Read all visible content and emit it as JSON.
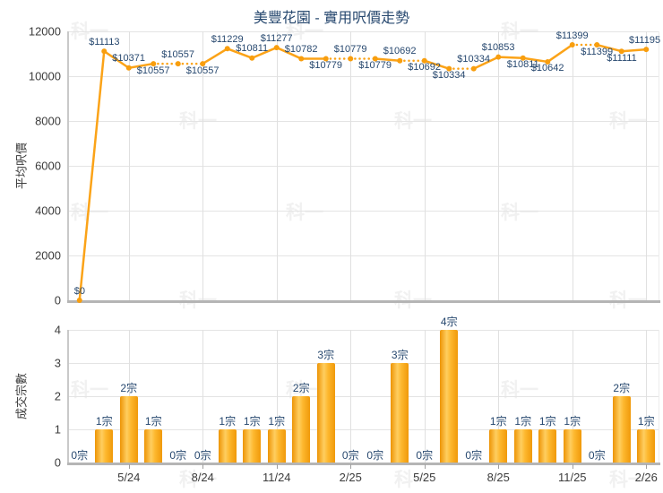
{
  "title": "美豐花園 - 實用呎價走勢",
  "watermark_text": "科一",
  "colors": {
    "line": "#FBA318",
    "marker": "#F89E0E",
    "bar_edge": "#ED9405",
    "bar_highlight": "#FFCE60",
    "label_navy": "#27486F",
    "tick_text": "#3C3C3C",
    "grid": "#E4E4E4",
    "axis": "#B5B5B5",
    "watermark": "#F1F1F1"
  },
  "chart_data": [
    {
      "type": "line",
      "title": "美豐花園 - 實用呎價走勢",
      "ylabel": "平均呎價",
      "xlabel": "",
      "ylim": [
        0,
        12000
      ],
      "yticks": [
        0,
        2000,
        4000,
        6000,
        8000,
        10000,
        12000
      ],
      "grid": true,
      "legend_position": "none",
      "categories": [
        "3/24",
        "4/24",
        "5/24",
        "6/24",
        "7/24",
        "8/24",
        "9/24",
        "10/24",
        "11/24",
        "12/24",
        "1/25",
        "2/25",
        "3/25",
        "4/25",
        "5/25",
        "6/25",
        "7/25",
        "8/25",
        "9/25",
        "10/25",
        "11/25",
        "12/25",
        "1/26",
        "2/26"
      ],
      "x_tick_indices": [
        2,
        5,
        8,
        11,
        14,
        17,
        20,
        23
      ],
      "x_tick_labels": [
        "5/24",
        "8/24",
        "11/24",
        "2/25",
        "5/25",
        "8/25",
        "11/25",
        "2/26"
      ],
      "values": [
        0,
        11113,
        10371,
        10557,
        10557,
        10557,
        11229,
        10811,
        11277,
        10782,
        10779,
        10779,
        10779,
        10692,
        10692,
        10334,
        10334,
        10853,
        10811,
        10642,
        11399,
        11399,
        11111,
        11195
      ],
      "point_labels": [
        "$0",
        "$11113",
        "$10371",
        "$10557",
        "$10557",
        "$10557",
        "$11229",
        "$10811",
        "$11277",
        "$10782",
        "$10779",
        "$10779",
        "$10779",
        "$10692",
        "$10692",
        "$10334",
        "$10334",
        "$10853",
        "$10811",
        "$10642",
        "$11399",
        "$11399",
        "$11111",
        "$11195"
      ],
      "label_side": [
        "above",
        "above",
        "above",
        "below",
        "above",
        "below",
        "above",
        "above",
        "above",
        "above",
        "below",
        "above",
        "below",
        "above",
        "below",
        "below",
        "above",
        "above",
        "below",
        "below",
        "above",
        "below",
        "below",
        "above"
      ],
      "dotted_segment_end_indices": [
        4,
        5,
        11,
        12,
        14,
        16,
        21
      ]
    },
    {
      "type": "bar",
      "ylabel": "成交宗數",
      "xlabel": "",
      "ylim": [
        0,
        4
      ],
      "yticks": [
        0,
        1,
        2,
        3,
        4
      ],
      "grid": true,
      "legend_position": "none",
      "categories": [
        "3/24",
        "4/24",
        "5/24",
        "6/24",
        "7/24",
        "8/24",
        "9/24",
        "10/24",
        "11/24",
        "12/24",
        "1/25",
        "2/25",
        "3/25",
        "4/25",
        "5/25",
        "6/25",
        "7/25",
        "8/25",
        "9/25",
        "10/25",
        "11/25",
        "12/25",
        "1/26",
        "2/26"
      ],
      "x_tick_indices": [
        2,
        5,
        8,
        11,
        14,
        17,
        20,
        23
      ],
      "x_tick_labels": [
        "5/24",
        "8/24",
        "11/24",
        "2/25",
        "5/25",
        "8/25",
        "11/25",
        "2/26"
      ],
      "values": [
        0,
        1,
        2,
        1,
        0,
        0,
        1,
        1,
        1,
        2,
        3,
        0,
        0,
        3,
        0,
        4,
        0,
        1,
        1,
        1,
        1,
        0,
        2,
        1
      ],
      "bar_labels": [
        "0宗",
        "1宗",
        "2宗",
        "1宗",
        "0宗",
        "0宗",
        "1宗",
        "1宗",
        "1宗",
        "2宗",
        "3宗",
        "0宗",
        "0宗",
        "3宗",
        "0宗",
        "4宗",
        "0宗",
        "1宗",
        "1宗",
        "1宗",
        "1宗",
        "0宗",
        "2宗",
        "1宗"
      ],
      "unit_suffix": "宗"
    }
  ]
}
